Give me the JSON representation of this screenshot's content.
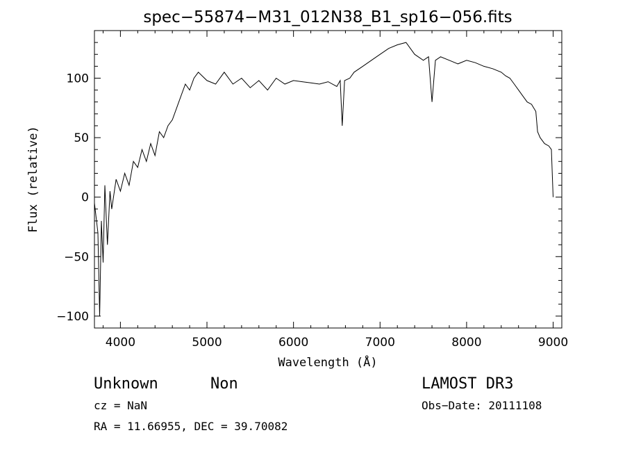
{
  "chart_data": {
    "type": "line",
    "title": "spec−55874−M31_012N38_B1_sp16−056.fits",
    "xlabel": "Wavelength (Å)",
    "ylabel": "Flux (relative)",
    "xlim": [
      3700,
      9100
    ],
    "ylim": [
      -110,
      140
    ],
    "x_ticks": [
      4000,
      5000,
      6000,
      7000,
      8000,
      9000
    ],
    "x_tick_labels": [
      "4000",
      "5000",
      "6000",
      "7000",
      "8000",
      "9000"
    ],
    "y_ticks": [
      -100,
      -50,
      0,
      50,
      100
    ],
    "y_tick_labels": [
      "−100",
      "−50",
      "0",
      "50",
      "100"
    ],
    "grid": false,
    "series": [
      {
        "color": "#000000",
        "x": [
          3700,
          3740,
          3760,
          3780,
          3800,
          3820,
          3850,
          3880,
          3900,
          3950,
          4000,
          4050,
          4100,
          4150,
          4200,
          4250,
          4300,
          4350,
          4400,
          4450,
          4500,
          4550,
          4600,
          4650,
          4700,
          4750,
          4800,
          4850,
          4900,
          5000,
          5100,
          5200,
          5300,
          5400,
          5500,
          5600,
          5700,
          5800,
          5900,
          6000,
          6100,
          6200,
          6300,
          6400,
          6500,
          6540,
          6563,
          6590,
          6650,
          6700,
          6800,
          6900,
          7000,
          7100,
          7200,
          7300,
          7350,
          7400,
          7500,
          7560,
          7600,
          7640,
          7700,
          7800,
          7900,
          8000,
          8100,
          8200,
          8300,
          8400,
          8450,
          8500,
          8550,
          8600,
          8650,
          8700,
          8750,
          8800,
          8820,
          8850,
          8900,
          8950,
          8980,
          9000
        ],
        "y": [
          -5,
          -30,
          -100,
          -20,
          -55,
          10,
          -40,
          5,
          -10,
          15,
          5,
          20,
          10,
          30,
          25,
          40,
          30,
          45,
          35,
          55,
          50,
          60,
          65,
          75,
          85,
          95,
          90,
          100,
          105,
          98,
          95,
          105,
          95,
          100,
          92,
          98,
          90,
          100,
          95,
          98,
          97,
          96,
          95,
          97,
          93,
          98,
          60,
          98,
          100,
          105,
          110,
          115,
          120,
          125,
          128,
          130,
          125,
          120,
          115,
          118,
          80,
          115,
          118,
          115,
          112,
          115,
          113,
          110,
          108,
          105,
          102,
          100,
          95,
          90,
          85,
          80,
          78,
          72,
          55,
          50,
          45,
          43,
          40,
          0
        ]
      }
    ]
  },
  "info": {
    "object_class": "Unknown",
    "subclass": "Non",
    "survey": "LAMOST DR3",
    "redshift": "cz = NaN",
    "obs_date": "Obs−Date: 20111108",
    "coords": "RA =  11.66955, DEC =  39.70082"
  }
}
